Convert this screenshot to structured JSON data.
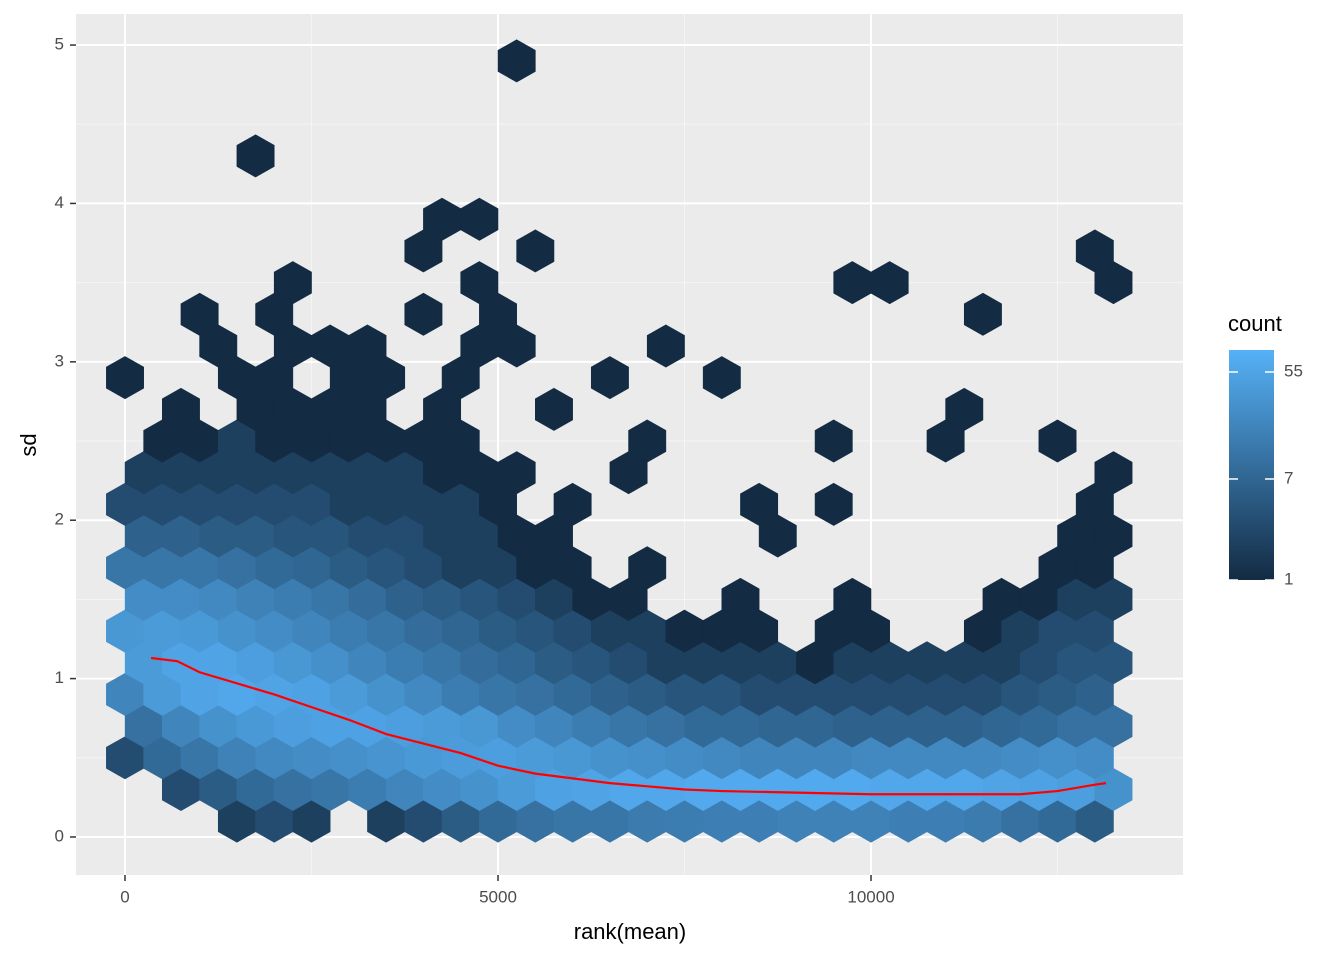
{
  "chart_data": {
    "type": "hexbin",
    "xlabel": "rank(mean)",
    "ylabel": "sd",
    "xlim": [
      -657,
      14182
    ],
    "ylim": [
      -0.24,
      5.196
    ],
    "xticks": [
      0,
      5000,
      10000
    ],
    "yticks": [
      0,
      1,
      2,
      3,
      4,
      5
    ],
    "xminor": [
      2500,
      7500,
      12500
    ],
    "yminor": [
      0.5,
      1.5,
      2.5,
      3.5,
      4.5
    ],
    "grid": true,
    "legend": {
      "title": "count",
      "position": "right",
      "ticks": [
        1,
        7,
        55
      ],
      "lim": [
        1,
        84
      ],
      "log": true,
      "low": "#132B43",
      "high": "#56B1F7"
    },
    "rows": [
      {
        "y": 0.1,
        "x": [
          1500,
          2000,
          2500,
          3500,
          4000,
          4500,
          5000,
          5500,
          6000,
          6500,
          7000,
          7500,
          8000,
          8500,
          9000,
          9500,
          10000,
          10500,
          11000,
          11500,
          12000,
          12500,
          13000
        ],
        "count": [
          2,
          3,
          2,
          2,
          3,
          5,
          8,
          10,
          12,
          12,
          14,
          15,
          16,
          16,
          18,
          18,
          18,
          16,
          16,
          14,
          10,
          8,
          5
        ]
      },
      {
        "y": 0.3,
        "x": [
          750,
          1250,
          1750,
          2250,
          2750,
          3250,
          3750,
          4250,
          4750,
          5250,
          5750,
          6250,
          6750,
          7250,
          7750,
          8250,
          8750,
          9250,
          9750,
          10250,
          10750,
          11250,
          11750,
          12250,
          12750,
          13250
        ],
        "count": [
          3,
          5,
          8,
          10,
          12,
          15,
          20,
          25,
          30,
          40,
          50,
          55,
          60,
          60,
          65,
          65,
          65,
          65,
          65,
          60,
          60,
          60,
          55,
          50,
          45,
          30
        ]
      },
      {
        "y": 0.5,
        "x": [
          0,
          500,
          1000,
          1500,
          2000,
          2500,
          3000,
          3500,
          4000,
          4500,
          5000,
          5500,
          6000,
          6500,
          7000,
          7500,
          8000,
          8500,
          9000,
          9500,
          10000,
          10500,
          11000,
          11500,
          12000,
          12500,
          13000
        ],
        "count": [
          3,
          8,
          12,
          18,
          22,
          25,
          28,
          32,
          38,
          42,
          45,
          40,
          35,
          30,
          28,
          25,
          22,
          20,
          20,
          20,
          22,
          22,
          22,
          22,
          25,
          28,
          25
        ]
      },
      {
        "y": 0.7,
        "x": [
          250,
          750,
          1250,
          1750,
          2250,
          2750,
          3250,
          3750,
          4250,
          4750,
          5250,
          5750,
          6250,
          6750,
          7250,
          7750,
          8250,
          8750,
          9250,
          9750,
          10250,
          10750,
          11250,
          11750,
          12250,
          12750,
          13250
        ],
        "count": [
          10,
          20,
          30,
          38,
          45,
          50,
          50,
          45,
          40,
          35,
          25,
          20,
          15,
          12,
          10,
          8,
          8,
          7,
          7,
          6,
          6,
          6,
          6,
          7,
          8,
          10,
          10
        ]
      },
      {
        "y": 0.9,
        "x": [
          0,
          500,
          1000,
          1500,
          2000,
          2500,
          3000,
          3500,
          4000,
          4500,
          5000,
          5500,
          6000,
          6500,
          7000,
          7500,
          8000,
          8500,
          9000,
          9500,
          10000,
          10500,
          11000,
          11500,
          12000,
          12500,
          13000
        ],
        "count": [
          20,
          40,
          55,
          60,
          55,
          50,
          40,
          30,
          22,
          15,
          12,
          10,
          8,
          6,
          5,
          4,
          4,
          3,
          3,
          3,
          3,
          3,
          3,
          3,
          4,
          5,
          6
        ]
      },
      {
        "y": 1.1,
        "x": [
          250,
          750,
          1250,
          1750,
          2250,
          2750,
          3250,
          3750,
          4250,
          4750,
          5250,
          5750,
          6250,
          6750,
          7250,
          7750,
          8250,
          8750,
          9250,
          9750,
          10250,
          10750,
          11250,
          11750,
          12250,
          12750,
          13250
        ],
        "count": [
          40,
          55,
          55,
          45,
          35,
          28,
          20,
          15,
          12,
          9,
          7,
          5,
          4,
          3,
          2,
          2,
          2,
          2,
          1,
          2,
          2,
          2,
          2,
          2,
          3,
          4,
          4
        ]
      },
      {
        "y": 1.3,
        "x": [
          0,
          500,
          1000,
          1500,
          2000,
          2500,
          3000,
          3500,
          4000,
          4500,
          5000,
          5500,
          6000,
          6500,
          7000,
          7500,
          8000,
          8500,
          9500,
          10000,
          11500,
          12000,
          12500,
          13000
        ],
        "count": [
          35,
          40,
          38,
          30,
          25,
          20,
          15,
          12,
          9,
          7,
          5,
          4,
          3,
          2,
          2,
          1,
          1,
          1,
          1,
          1,
          1,
          2,
          3,
          3
        ]
      },
      {
        "y": 1.5,
        "x": [
          250,
          750,
          1250,
          1750,
          2250,
          2750,
          3250,
          3750,
          4250,
          4750,
          5250,
          5750,
          6250,
          6750,
          8250,
          9750,
          11750,
          12250,
          12750,
          13250
        ],
        "count": [
          25,
          25,
          22,
          18,
          15,
          12,
          9,
          6,
          5,
          4,
          3,
          2,
          1,
          1,
          1,
          1,
          1,
          1,
          2,
          2
        ]
      },
      {
        "y": 1.7,
        "x": [
          0,
          500,
          1000,
          1500,
          2000,
          2500,
          3000,
          3500,
          4000,
          4500,
          5000,
          5500,
          6000,
          7000,
          12500,
          13000
        ],
        "count": [
          12,
          12,
          12,
          10,
          8,
          7,
          5,
          4,
          3,
          2,
          2,
          1,
          1,
          1,
          1,
          1
        ]
      },
      {
        "y": 1.9,
        "x": [
          250,
          750,
          1250,
          1750,
          2250,
          2750,
          3250,
          3750,
          4250,
          4750,
          5250,
          5750,
          8750,
          12750,
          13250
        ],
        "count": [
          6,
          6,
          5,
          5,
          4,
          4,
          3,
          3,
          2,
          2,
          1,
          1,
          1,
          1,
          1
        ]
      },
      {
        "y": 2.1,
        "x": [
          0,
          500,
          1000,
          1500,
          2000,
          2500,
          3000,
          3500,
          4000,
          4500,
          5000,
          6000,
          8500,
          9500,
          13000
        ],
        "count": [
          3,
          3,
          3,
          3,
          3,
          3,
          2,
          2,
          2,
          2,
          1,
          1,
          1,
          1,
          1
        ]
      },
      {
        "y": 2.3,
        "x": [
          250,
          750,
          1250,
          1750,
          2250,
          2750,
          3250,
          3750,
          4250,
          4750,
          5250,
          6750,
          13250
        ],
        "count": [
          2,
          2,
          2,
          2,
          2,
          2,
          2,
          2,
          1,
          1,
          1,
          1,
          1
        ]
      },
      {
        "y": 2.5,
        "x": [
          500,
          1000,
          1500,
          2000,
          2500,
          3000,
          3500,
          4000,
          4500,
          7000,
          9500,
          11000,
          12500
        ],
        "count": [
          1,
          1,
          2,
          1,
          1,
          1,
          1,
          1,
          1,
          1,
          1,
          1,
          1
        ]
      },
      {
        "y": 2.7,
        "x": [
          750,
          1750,
          2250,
          2750,
          3250,
          4250,
          5750,
          11250
        ],
        "count": [
          1,
          1,
          1,
          1,
          1,
          1,
          1,
          1
        ]
      },
      {
        "y": 2.9,
        "x": [
          0,
          1500,
          2000,
          3000,
          3500,
          4500,
          6500,
          8000
        ],
        "count": [
          1,
          1,
          1,
          1,
          1,
          1,
          1,
          1
        ]
      },
      {
        "y": 3.1,
        "x": [
          1250,
          2250,
          2750,
          3250,
          4750,
          5250,
          7250
        ],
        "count": [
          1,
          1,
          1,
          1,
          1,
          1,
          1
        ]
      },
      {
        "y": 3.3,
        "x": [
          1000,
          2000,
          4000,
          5000,
          11500
        ],
        "count": [
          1,
          1,
          1,
          1,
          1
        ]
      },
      {
        "y": 3.5,
        "x": [
          2250,
          4750,
          9750,
          10250,
          13250
        ],
        "count": [
          1,
          1,
          1,
          1,
          1
        ]
      },
      {
        "y": 3.7,
        "x": [
          4000,
          5500,
          13000
        ],
        "count": [
          1,
          1,
          1
        ]
      },
      {
        "y": 3.9,
        "x": [
          4250,
          4750
        ],
        "count": [
          1,
          1
        ]
      },
      {
        "y": 4.3,
        "x": [
          1750
        ],
        "count": [
          1
        ]
      },
      {
        "y": 4.9,
        "x": [
          5250
        ],
        "count": [
          1
        ]
      }
    ],
    "line": {
      "color": "#FF0000",
      "x": [
        349,
        700,
        1000,
        1500,
        2000,
        2500,
        3000,
        3500,
        4000,
        4500,
        5000,
        5500,
        6000,
        6500,
        7000,
        7500,
        8000,
        9000,
        10000,
        11000,
        12000,
        12500,
        13000,
        13150
      ],
      "y": [
        1.13,
        1.11,
        1.04,
        0.97,
        0.9,
        0.82,
        0.74,
        0.65,
        0.59,
        0.53,
        0.45,
        0.4,
        0.37,
        0.34,
        0.32,
        0.3,
        0.29,
        0.28,
        0.27,
        0.27,
        0.27,
        0.29,
        0.33,
        0.34
      ]
    }
  }
}
